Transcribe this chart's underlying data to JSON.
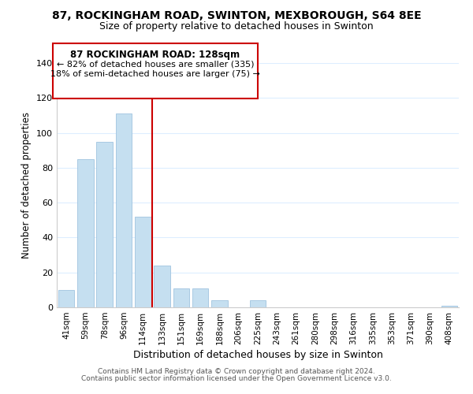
{
  "title": "87, ROCKINGHAM ROAD, SWINTON, MEXBOROUGH, S64 8EE",
  "subtitle": "Size of property relative to detached houses in Swinton",
  "xlabel": "Distribution of detached houses by size in Swinton",
  "ylabel": "Number of detached properties",
  "bar_color": "#c5dff0",
  "bar_edgecolor": "#a0c4e0",
  "categories": [
    "41sqm",
    "59sqm",
    "78sqm",
    "96sqm",
    "114sqm",
    "133sqm",
    "151sqm",
    "169sqm",
    "188sqm",
    "206sqm",
    "225sqm",
    "243sqm",
    "261sqm",
    "280sqm",
    "298sqm",
    "316sqm",
    "335sqm",
    "353sqm",
    "371sqm",
    "390sqm",
    "408sqm"
  ],
  "values": [
    10,
    85,
    95,
    111,
    52,
    24,
    11,
    11,
    4,
    0,
    4,
    0,
    0,
    0,
    0,
    0,
    0,
    0,
    0,
    0,
    1
  ],
  "ylim": [
    0,
    140
  ],
  "yticks": [
    0,
    20,
    40,
    60,
    80,
    100,
    120,
    140
  ],
  "property_line_x": 4.5,
  "property_line_color": "#cc0000",
  "annotation_title": "87 ROCKINGHAM ROAD: 128sqm",
  "annotation_line1": "← 82% of detached houses are smaller (335)",
  "annotation_line2": "18% of semi-detached houses are larger (75) →",
  "footer1": "Contains HM Land Registry data © Crown copyright and database right 2024.",
  "footer2": "Contains public sector information licensed under the Open Government Licence v3.0.",
  "background_color": "#ffffff",
  "grid_color": "#ddeeff"
}
